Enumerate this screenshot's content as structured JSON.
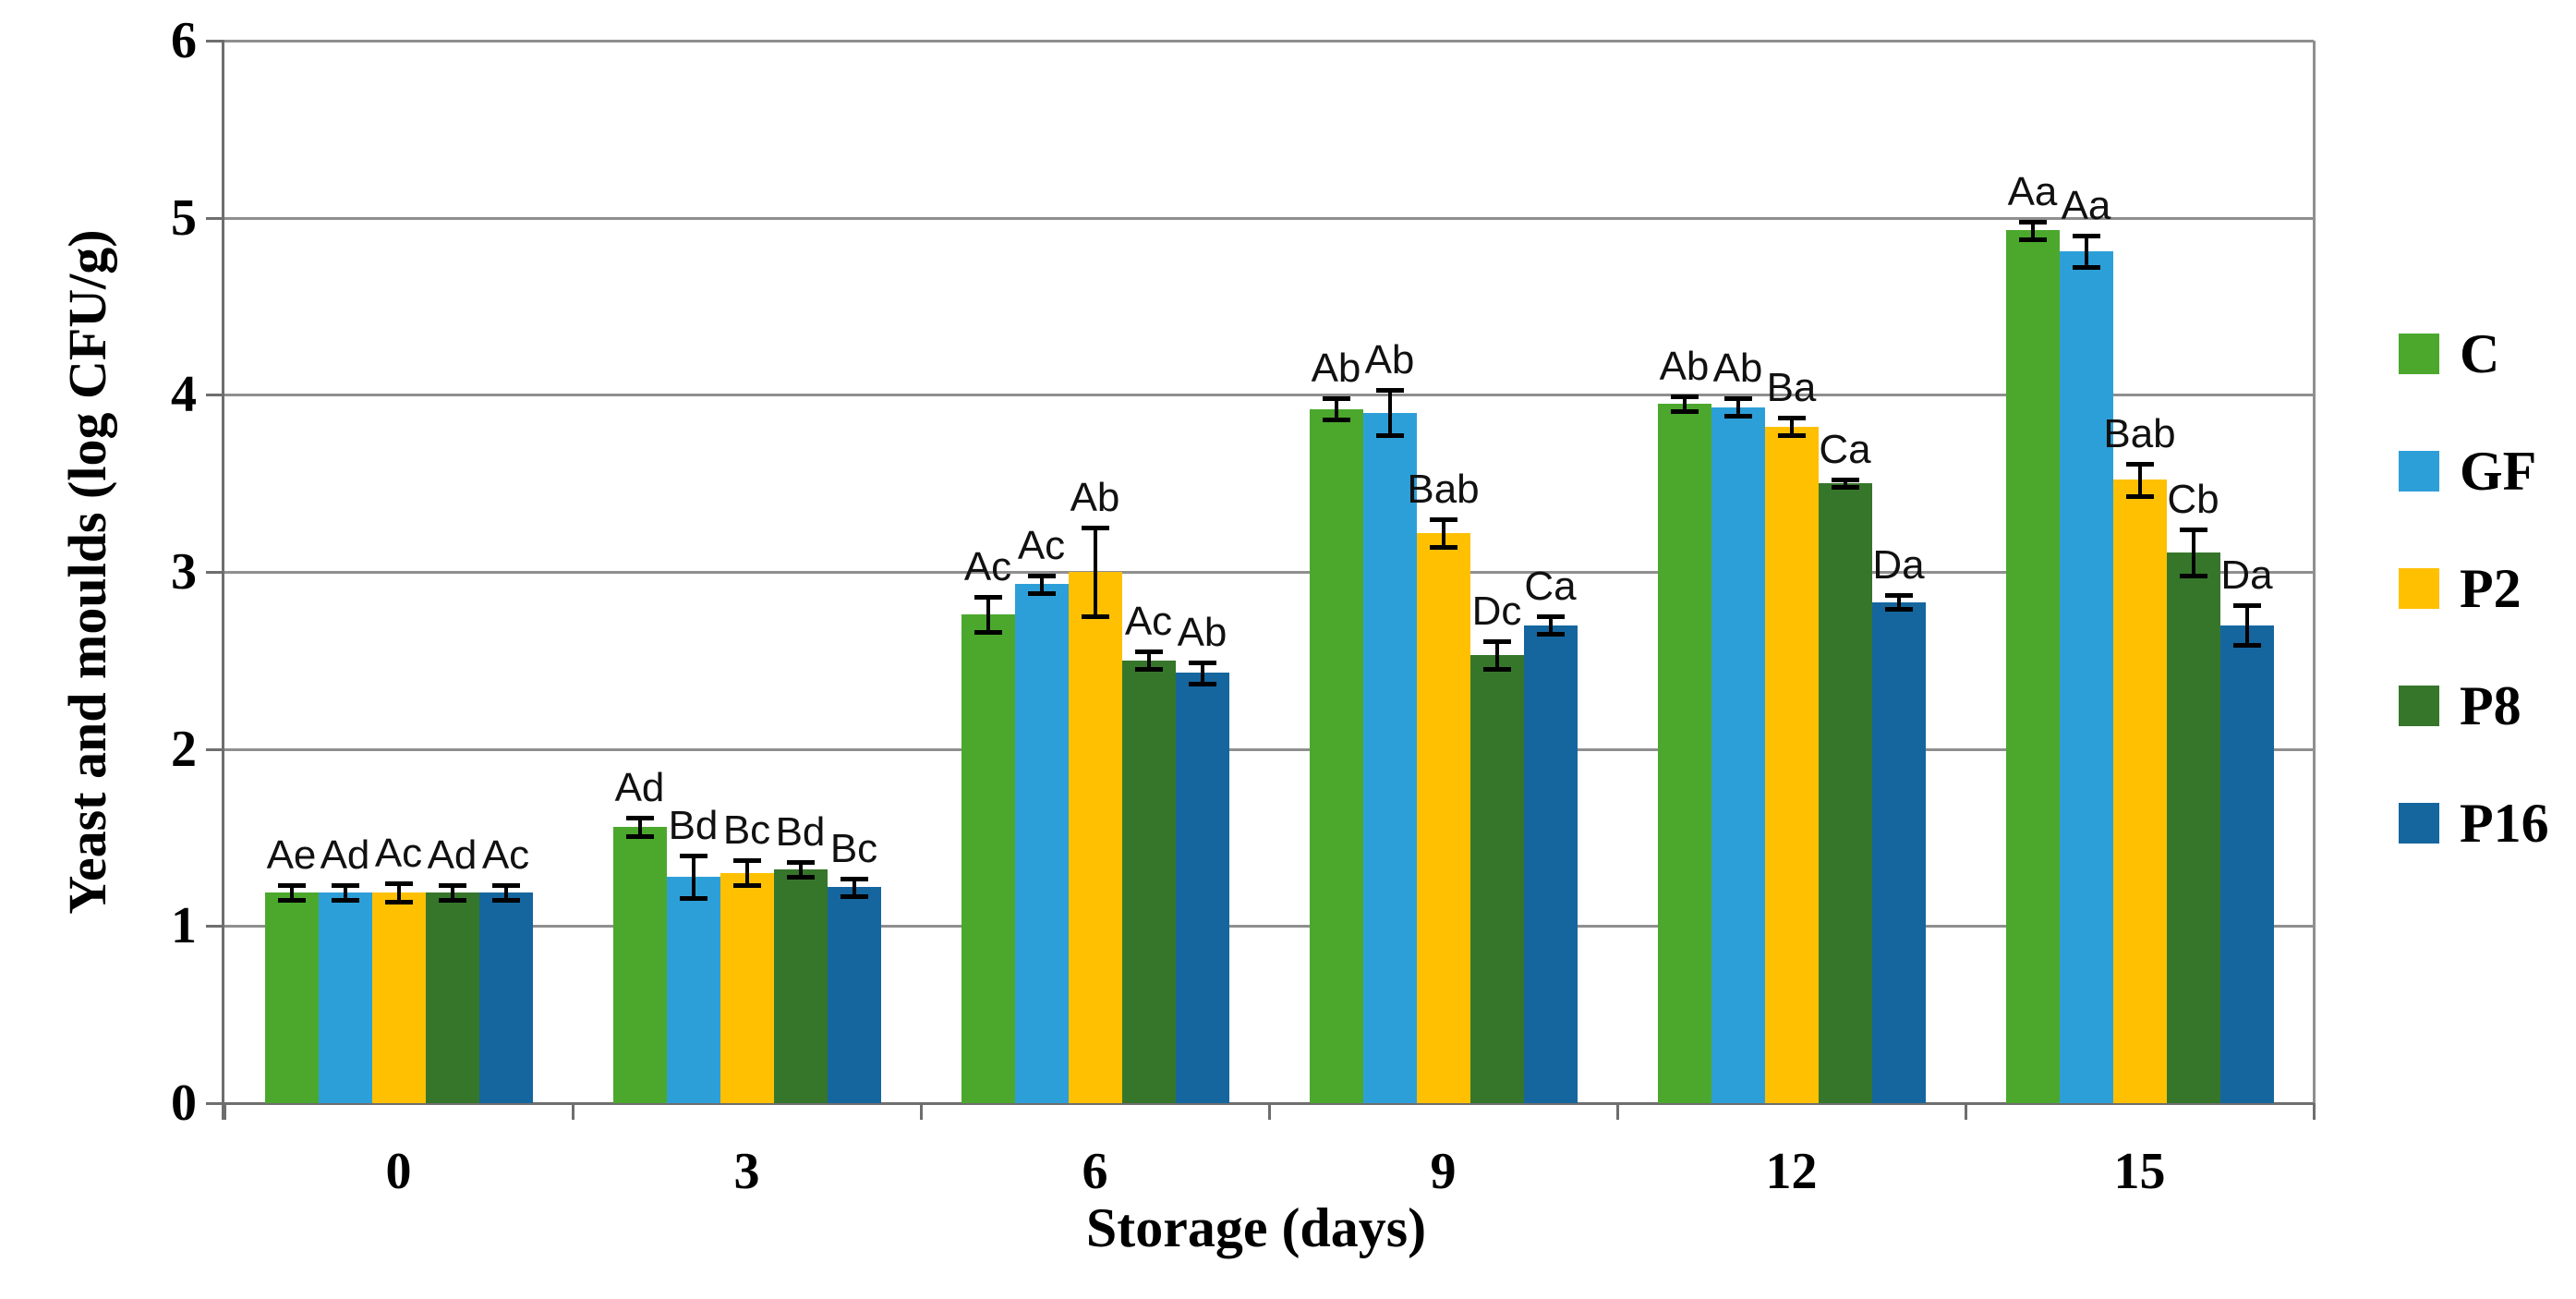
{
  "figure": {
    "background": "#ffffff",
    "y_axis_title": "Yeast and moulds (log CFU/g)",
    "x_axis_title": "Storage (days)"
  },
  "axes": {
    "y_tick_labels": [
      "0",
      "1",
      "2",
      "3",
      "4",
      "5",
      "6"
    ],
    "x_tick_labels": [
      "0",
      "3",
      "6",
      "9",
      "12",
      "15"
    ],
    "y_min": 0,
    "y_max": 6
  },
  "legend": {
    "position": "right",
    "items": [
      {
        "label": "C",
        "color": "#4BA82D"
      },
      {
        "label": "GF",
        "color": "#2D9FD8"
      },
      {
        "label": "P2",
        "color": "#FFC002"
      },
      {
        "label": "P8",
        "color": "#36762B"
      },
      {
        "label": "P16",
        "color": "#15669F"
      }
    ]
  },
  "colors": {
    "gridline": "#8f8f8f",
    "axis": "#6e6e6e",
    "error_bar": "#000000",
    "text": "#000000"
  },
  "chart_data": {
    "type": "bar",
    "title": "",
    "xlabel": "Storage (days)",
    "ylabel": "Yeast and moulds (log CFU/g)",
    "categories": [
      0,
      3,
      6,
      9,
      12,
      15
    ],
    "ylim": [
      0,
      6
    ],
    "grid": true,
    "legend_position": "right",
    "error_bars": true,
    "series": [
      {
        "name": "C",
        "color": "#4BA82D",
        "values": [
          1.19,
          1.56,
          2.76,
          3.92,
          3.95,
          4.93
        ],
        "errors": [
          0.04,
          0.05,
          0.1,
          0.06,
          0.04,
          0.05
        ],
        "sig_labels": [
          "Ae",
          "Ad",
          "Ac",
          "Ab",
          "Ab",
          "Aa"
        ]
      },
      {
        "name": "GF",
        "color": "#2D9FD8",
        "values": [
          1.19,
          1.28,
          2.93,
          3.9,
          3.93,
          4.81
        ],
        "errors": [
          0.04,
          0.12,
          0.05,
          0.13,
          0.05,
          0.09
        ],
        "sig_labels": [
          "Ad",
          "Bd",
          "Ac",
          "Ab",
          "Ab",
          "Aa"
        ]
      },
      {
        "name": "P2",
        "color": "#FFC002",
        "values": [
          1.19,
          1.3,
          3.0,
          3.22,
          3.82,
          3.52
        ],
        "errors": [
          0.05,
          0.07,
          0.25,
          0.08,
          0.05,
          0.09
        ],
        "sig_labels": [
          "Ac",
          "Bc",
          "Ab",
          "Bab",
          "Ba",
          "Bab"
        ]
      },
      {
        "name": "P8",
        "color": "#36762B",
        "values": [
          1.19,
          1.32,
          2.5,
          2.53,
          3.5,
          3.11
        ],
        "errors": [
          0.04,
          0.04,
          0.05,
          0.08,
          0.02,
          0.13
        ],
        "sig_labels": [
          "Ad",
          "Bd",
          "Ac",
          "Dc",
          "Ca",
          "Cb"
        ]
      },
      {
        "name": "P16",
        "color": "#15669F",
        "values": [
          1.19,
          1.22,
          2.43,
          2.7,
          2.83,
          2.7
        ],
        "errors": [
          0.04,
          0.05,
          0.06,
          0.05,
          0.04,
          0.11
        ],
        "sig_labels": [
          "Ac",
          "Bc",
          "Ab",
          "Ca",
          "Da",
          "Da"
        ]
      }
    ]
  }
}
